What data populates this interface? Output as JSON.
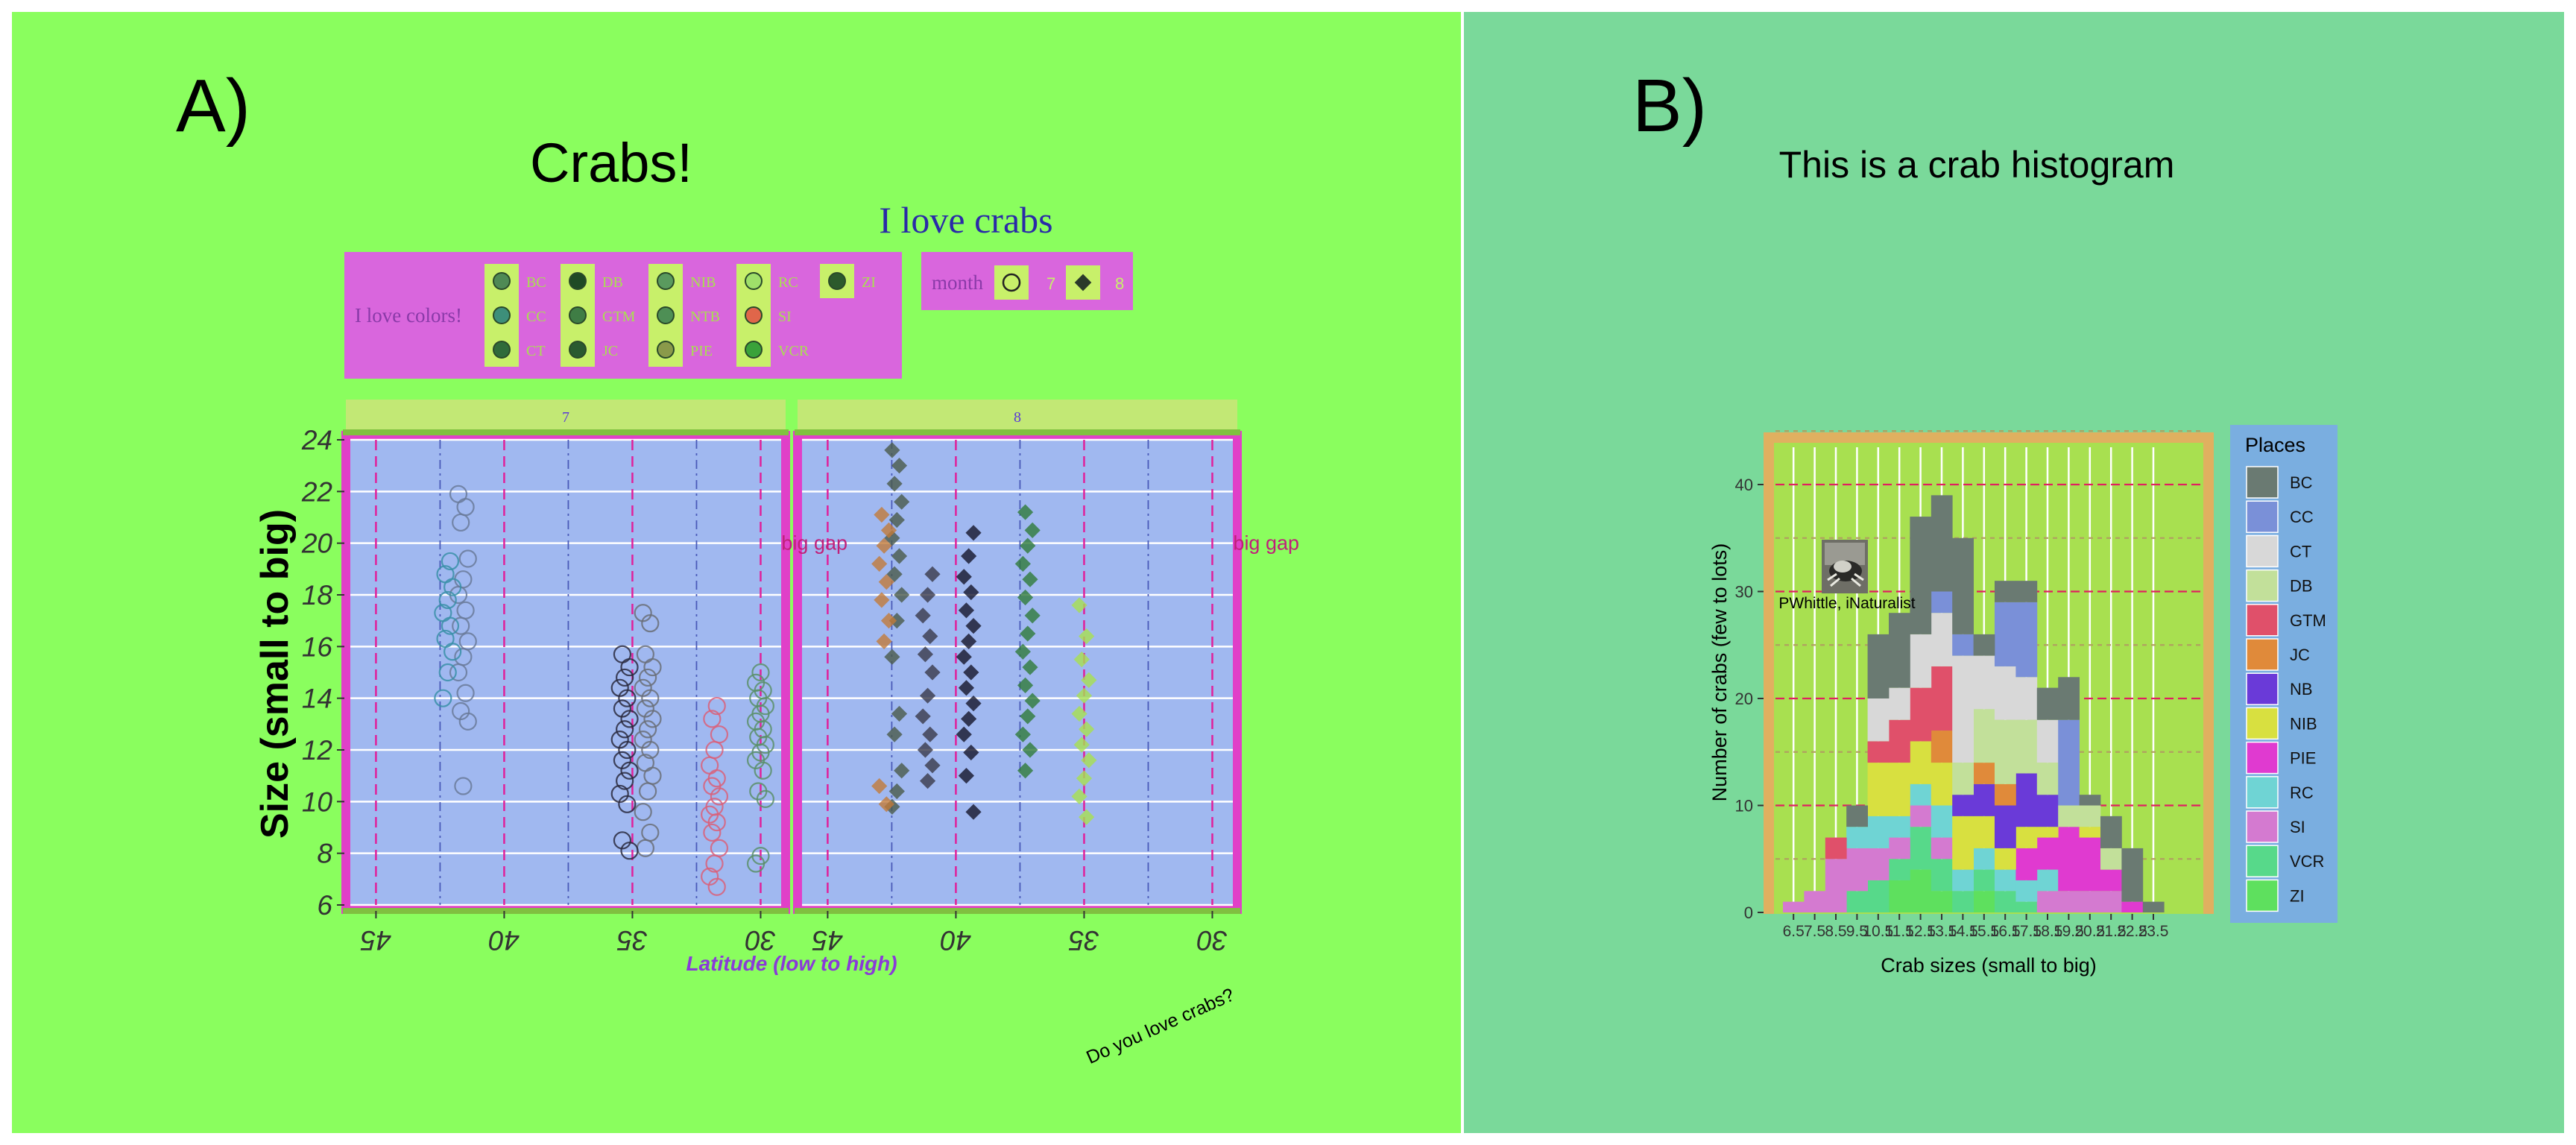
{
  "panel_a": {
    "tag": "A)",
    "title": "Crabs!",
    "subtitle": "I love crabs",
    "caption": "Do you love crabs?",
    "legend_colors": {
      "title": "I love colors!",
      "entries": [
        {
          "label": "BC",
          "color": "#4f8a55"
        },
        {
          "label": "CC",
          "color": "#3d8f7a"
        },
        {
          "label": "CT",
          "color": "#2f6b3a"
        },
        {
          "label": "DB",
          "color": "#1f4a25"
        },
        {
          "label": "GTM",
          "color": "#3f7d45"
        },
        {
          "label": "JC",
          "color": "#2a5a30"
        },
        {
          "label": "NIB",
          "color": "#5a9a5e"
        },
        {
          "label": "NTB",
          "color": "#4e8f55"
        },
        {
          "label": "PIE",
          "color": "#8a9a4a"
        },
        {
          "label": "RC",
          "color": "#9fe06a"
        },
        {
          "label": "SI",
          "color": "#e0664a"
        },
        {
          "label": "VCR",
          "color": "#3aa23a"
        },
        {
          "label": "ZI",
          "color": "#2c5a2c"
        }
      ]
    },
    "legend_month": {
      "title": "month",
      "entries": [
        {
          "label": "7",
          "shape": "circle"
        },
        {
          "label": "8",
          "shape": "diamond"
        }
      ]
    }
  },
  "panel_b": {
    "tag": "B)",
    "title": "This is a crab histogram",
    "image_credit": "PWhittle, iNaturalist",
    "legend_title": "Places"
  },
  "chart_data": [
    {
      "type": "scatter",
      "title": "Crabs!",
      "subtitle": "I love crabs",
      "xlabel": "Latitude (low to high)",
      "ylabel": "Size (small to big)",
      "xlim": [
        29.2,
        46.0
      ],
      "ylim": [
        6,
        24
      ],
      "x_reversed": true,
      "y_ticks": [
        6,
        8,
        10,
        12,
        14,
        16,
        18,
        20,
        22,
        24
      ],
      "x_ticks": [
        30,
        35,
        40,
        45
      ],
      "facets": [
        {
          "label": "7",
          "annotation": "big gap",
          "annotation_at": [
            27.9,
            20
          ],
          "shape": "circle"
        },
        {
          "label": "8",
          "annotation": "big gap",
          "annotation_at": [
            27.9,
            20
          ],
          "shape": "diamond"
        }
      ],
      "groups": [
        {
          "facet": 0,
          "lat": 30.0,
          "color": "#5a8f6a",
          "values": [
            7.6,
            7.9,
            10.1,
            10.4,
            11.2,
            11.6,
            11.9,
            12.2,
            12.5,
            12.8,
            13.1,
            13.4,
            13.7,
            14.0,
            14.3,
            14.6,
            15.0
          ]
        },
        {
          "facet": 0,
          "lat": 31.8,
          "color": "#d9607a",
          "values": [
            6.7,
            7.1,
            7.6,
            8.2,
            8.8,
            9.2,
            9.5,
            9.8,
            10.2,
            10.6,
            10.9,
            11.4,
            12.0,
            12.6,
            13.2,
            13.7
          ]
        },
        {
          "facet": 0,
          "lat": 34.4,
          "color": "#6a6f78",
          "values": [
            8.2,
            8.8,
            9.6,
            10.4,
            11.0,
            11.5,
            12.0,
            12.4,
            12.8,
            13.2,
            13.6,
            14.0,
            14.4,
            14.8,
            15.2,
            15.7,
            16.9,
            17.3
          ]
        },
        {
          "facet": 0,
          "lat": 35.3,
          "color": "#2a2a40",
          "values": [
            8.1,
            8.5,
            9.9,
            10.3,
            10.8,
            11.2,
            11.6,
            12.0,
            12.4,
            12.8,
            13.2,
            13.6,
            14.0,
            14.4,
            14.8,
            15.2,
            15.7
          ]
        },
        {
          "facet": 0,
          "lat": 41.6,
          "color": "#6a7a9a",
          "values": [
            10.6,
            13.1,
            13.5,
            14.2,
            15.0,
            15.6,
            16.2,
            16.8,
            17.4,
            18.0,
            18.6,
            19.4,
            20.8,
            21.4,
            21.9
          ]
        },
        {
          "facet": 0,
          "lat": 42.2,
          "color": "#3a8fa8",
          "values": [
            14.0,
            15.0,
            15.8,
            16.3,
            16.8,
            17.3,
            17.8,
            18.3,
            18.8,
            19.3
          ]
        },
        {
          "facet": 1,
          "lat": 35.0,
          "color": "#a8e050",
          "values": [
            9.4,
            10.2,
            10.9,
            11.6,
            12.2,
            12.8,
            13.4,
            14.1,
            14.7,
            15.5,
            16.4,
            17.6
          ]
        },
        {
          "facet": 1,
          "lat": 37.2,
          "color": "#2f7a3a",
          "values": [
            11.2,
            12.0,
            12.6,
            13.3,
            13.9,
            14.5,
            15.2,
            15.8,
            16.5,
            17.2,
            17.9,
            18.6,
            19.2,
            19.9,
            20.5,
            21.2
          ]
        },
        {
          "facet": 1,
          "lat": 39.5,
          "color": "#15152a",
          "values": [
            9.6,
            11.0,
            11.9,
            12.6,
            13.2,
            13.8,
            14.4,
            15.0,
            15.6,
            16.2,
            16.8,
            17.4,
            18.1,
            18.7,
            19.5,
            20.4
          ]
        },
        {
          "facet": 1,
          "lat": 41.1,
          "color": "#3a3a4a",
          "values": [
            10.8,
            11.4,
            12.0,
            12.6,
            13.3,
            14.1,
            15.0,
            15.7,
            16.4,
            17.2,
            18.0,
            18.8
          ]
        },
        {
          "facet": 1,
          "lat": 42.3,
          "color": "#4a5a4a",
          "values": [
            9.8,
            10.4,
            11.2,
            12.6,
            13.4,
            15.6,
            17.0,
            18.0,
            18.8,
            19.5,
            20.2,
            20.9,
            21.6,
            22.3,
            23.0,
            23.6
          ]
        },
        {
          "facet": 1,
          "lat": 42.8,
          "color": "#c27a3a",
          "values": [
            9.9,
            10.6,
            16.2,
            17.0,
            17.8,
            18.5,
            19.2,
            19.9,
            20.5,
            21.1
          ]
        }
      ]
    },
    {
      "type": "bar",
      "stacked": true,
      "title": "This is a crab histogram",
      "xlabel": "Crab sizes (small to big)",
      "ylabel": "Number of crabs (few to lots)",
      "ylim": [
        0,
        46
      ],
      "y_ticks": [
        0,
        10,
        20,
        30,
        40
      ],
      "categories": [
        "6.5",
        "7.5",
        "8.5",
        "9.5",
        "10.5",
        "11.5",
        "12.5",
        "13.5",
        "14.5",
        "15.5",
        "16.5",
        "17.5",
        "18.5",
        "19.5",
        "20.5",
        "21.5",
        "22.5",
        "23.5"
      ],
      "series": [
        {
          "name": "ZI",
          "color": "#5ee05e",
          "values": [
            0,
            0,
            0,
            0,
            0,
            3,
            4,
            2,
            0,
            2,
            0,
            0,
            0,
            0,
            0,
            0,
            0,
            0
          ]
        },
        {
          "name": "VCR",
          "color": "#57d98a",
          "values": [
            0,
            0,
            0,
            2,
            3,
            2,
            4,
            3,
            2,
            2,
            2,
            1,
            0,
            0,
            0,
            0,
            0,
            0
          ]
        },
        {
          "name": "SI",
          "color": "#d47ad0",
          "values": [
            1,
            2,
            5,
            4,
            3,
            2,
            2,
            2,
            0,
            0,
            0,
            0,
            2,
            2,
            2,
            2,
            0,
            0
          ]
        },
        {
          "name": "RC",
          "color": "#6fd4d4",
          "values": [
            0,
            0,
            0,
            2,
            3,
            2,
            2,
            3,
            2,
            2,
            2,
            2,
            2,
            0,
            0,
            0,
            0,
            0
          ]
        },
        {
          "name": "PIE",
          "color": "#e03ad0",
          "values": [
            0,
            0,
            0,
            0,
            0,
            0,
            0,
            0,
            0,
            0,
            0,
            3,
            3,
            6,
            5,
            2,
            1,
            0
          ]
        },
        {
          "name": "NIB",
          "color": "#d8e040",
          "values": [
            0,
            0,
            0,
            0,
            5,
            5,
            4,
            4,
            5,
            3,
            2,
            2,
            1,
            0,
            1,
            0,
            0,
            0
          ]
        },
        {
          "name": "NB",
          "color": "#6a3ad8",
          "values": [
            0,
            0,
            0,
            0,
            0,
            0,
            0,
            0,
            2,
            3,
            4,
            5,
            3,
            0,
            0,
            0,
            0,
            0
          ]
        },
        {
          "name": "JC",
          "color": "#e08a3a",
          "values": [
            0,
            0,
            0,
            0,
            0,
            0,
            0,
            3,
            0,
            2,
            2,
            0,
            0,
            0,
            0,
            0,
            0,
            0
          ]
        },
        {
          "name": "GTM",
          "color": "#e0506a",
          "values": [
            0,
            0,
            2,
            0,
            2,
            4,
            5,
            6,
            0,
            0,
            0,
            0,
            0,
            0,
            0,
            0,
            0,
            0
          ]
        },
        {
          "name": "DB",
          "color": "#c2e09a",
          "values": [
            0,
            0,
            0,
            0,
            0,
            0,
            0,
            0,
            3,
            5,
            6,
            5,
            3,
            2,
            2,
            2,
            0,
            0
          ]
        },
        {
          "name": "CT",
          "color": "#d8d8d8",
          "values": [
            0,
            0,
            0,
            0,
            4,
            3,
            5,
            5,
            10,
            5,
            5,
            4,
            4,
            0,
            0,
            0,
            0,
            0
          ]
        },
        {
          "name": "CC",
          "color": "#7a90d8",
          "values": [
            0,
            0,
            0,
            0,
            0,
            0,
            0,
            2,
            2,
            0,
            6,
            7,
            0,
            8,
            0,
            0,
            0,
            0
          ]
        },
        {
          "name": "BC",
          "color": "#6a7a72",
          "values": [
            0,
            0,
            0,
            2,
            6,
            7,
            11,
            9,
            9,
            2,
            2,
            2,
            3,
            4,
            1,
            3,
            5,
            1
          ]
        }
      ]
    }
  ]
}
